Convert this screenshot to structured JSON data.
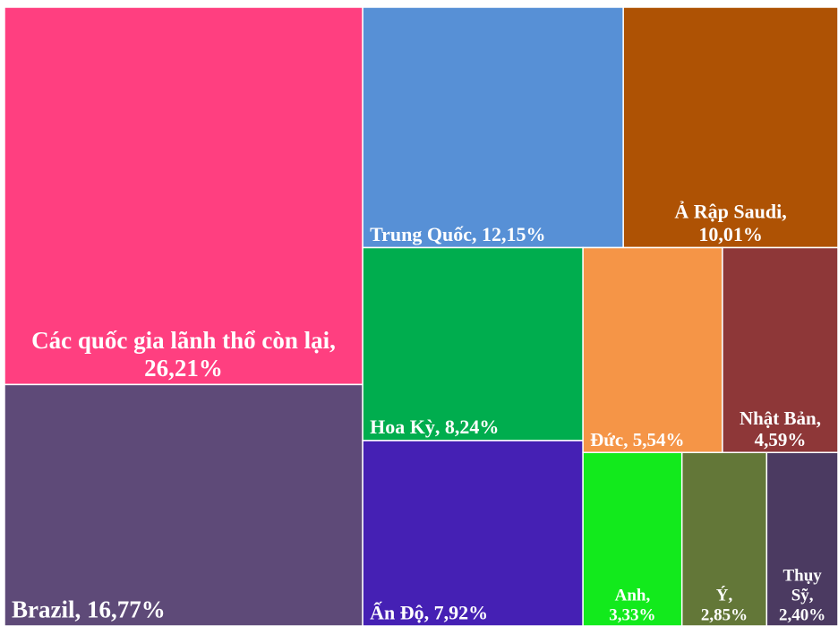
{
  "chart_data": {
    "type": "treemap",
    "labels": [
      [
        "Các quốc gia lãnh thổ còn lại,",
        "26,21%"
      ],
      [
        "Brazil, 16,77%"
      ],
      [
        "Trung Quốc, 12,15%"
      ],
      [
        "Ả Rập Saudi,",
        "10,01%"
      ],
      [
        "Hoa Kỳ, 8,24%"
      ],
      [
        "Ấn Độ, 7,92%"
      ],
      [
        "Đức, 5,54%"
      ],
      [
        "Nhật Bản,",
        "4,59%"
      ],
      [
        "Anh,",
        "3,33%"
      ],
      [
        "Ý,",
        "2,85%"
      ],
      [
        "Thụy",
        "Sỹ,",
        "2,40%"
      ]
    ],
    "values": [
      26.21,
      16.77,
      12.15,
      10.01,
      8.24,
      7.92,
      5.54,
      4.59,
      3.33,
      2.85,
      2.4
    ],
    "colors": [
      "#ff3f80",
      "#5e4a78",
      "#5790d6",
      "#ae5204",
      "#00ad4e",
      "#4520b4",
      "#f59547",
      "#8e3738",
      "#12ea1c",
      "#637738",
      "#4b3a61"
    ]
  }
}
